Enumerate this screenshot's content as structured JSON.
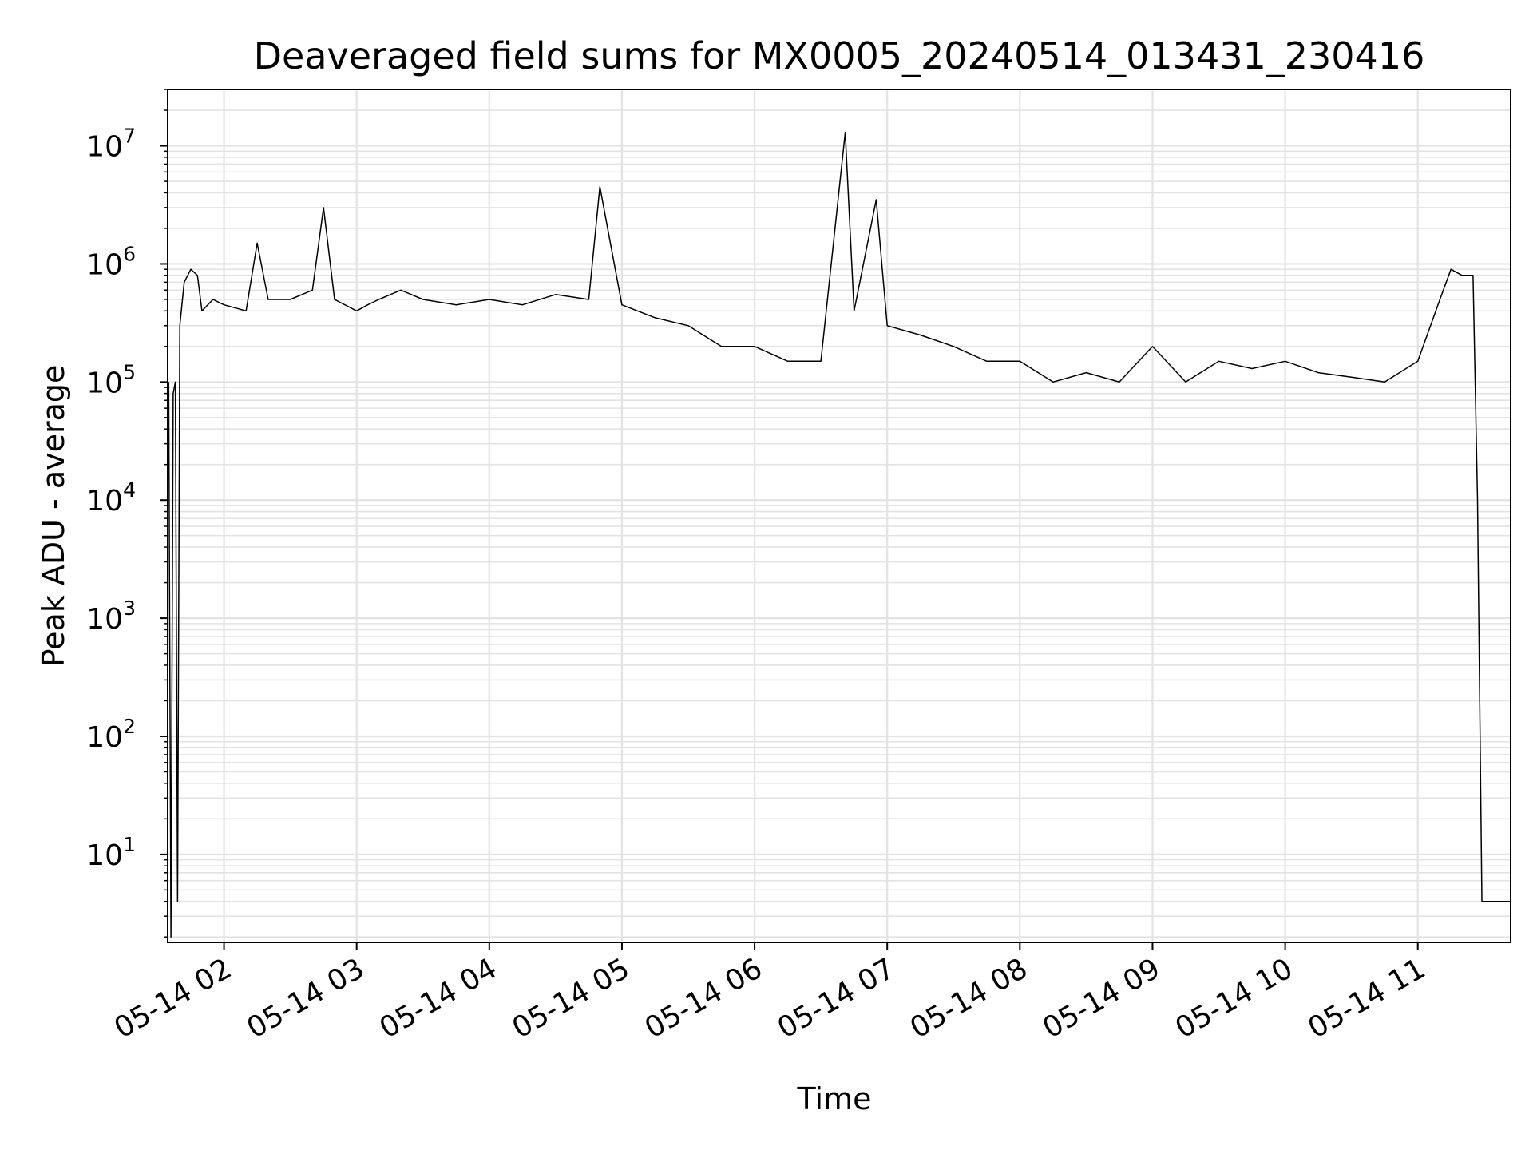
{
  "chart_data": {
    "type": "line",
    "title": "Deaveraged field sums for MX0005_20240514_013431_230416",
    "xlabel": "Time",
    "ylabel": "Peak ADU - average",
    "yscale": "log",
    "ylim": [
      1.8,
      30000000
    ],
    "xlim": [
      "2024-05-14T01:34:31",
      "2024-05-14T11:42:00"
    ],
    "grid": true,
    "x_ticks": [
      "05-14 02",
      "05-14 03",
      "05-14 04",
      "05-14 05",
      "05-14 06",
      "05-14 07",
      "05-14 08",
      "05-14 09",
      "05-14 10",
      "05-14 11"
    ],
    "y_ticks": [
      {
        "base": "10",
        "exp": "1",
        "value": 10
      },
      {
        "base": "10",
        "exp": "2",
        "value": 100
      },
      {
        "base": "10",
        "exp": "3",
        "value": 1000
      },
      {
        "base": "10",
        "exp": "4",
        "value": 10000
      },
      {
        "base": "10",
        "exp": "5",
        "value": 100000
      },
      {
        "base": "10",
        "exp": "6",
        "value": 1000000
      },
      {
        "base": "10",
        "exp": "7",
        "value": 10000000
      }
    ],
    "line_color": "#000000",
    "series": [
      {
        "x": [
          "2024-05-14T01:35:00",
          "2024-05-14T01:36:00",
          "2024-05-14T01:37:00",
          "2024-05-14T01:38:00",
          "2024-05-14T01:39:00",
          "2024-05-14T01:40:00",
          "2024-05-14T01:42:00",
          "2024-05-14T01:45:00",
          "2024-05-14T01:48:00",
          "2024-05-14T01:50:00",
          "2024-05-14T01:55:00",
          "2024-05-14T02:00:00",
          "2024-05-14T02:10:00",
          "2024-05-14T02:15:00",
          "2024-05-14T02:20:00",
          "2024-05-14T02:30:00",
          "2024-05-14T02:40:00",
          "2024-05-14T02:45:00",
          "2024-05-14T02:50:00",
          "2024-05-14T03:00:00",
          "2024-05-14T03:05:00",
          "2024-05-14T03:10:00",
          "2024-05-14T03:20:00",
          "2024-05-14T03:30:00",
          "2024-05-14T03:45:00",
          "2024-05-14T04:00:00",
          "2024-05-14T04:15:00",
          "2024-05-14T04:30:00",
          "2024-05-14T04:45:00",
          "2024-05-14T04:50:00",
          "2024-05-14T05:00:00",
          "2024-05-14T05:15:00",
          "2024-05-14T05:30:00",
          "2024-05-14T05:45:00",
          "2024-05-14T06:00:00",
          "2024-05-14T06:15:00",
          "2024-05-14T06:30:00",
          "2024-05-14T06:41:00",
          "2024-05-14T06:45:00",
          "2024-05-14T06:55:00",
          "2024-05-14T07:00:00",
          "2024-05-14T07:15:00",
          "2024-05-14T07:30:00",
          "2024-05-14T07:45:00",
          "2024-05-14T08:00:00",
          "2024-05-14T08:15:00",
          "2024-05-14T08:30:00",
          "2024-05-14T08:45:00",
          "2024-05-14T09:00:00",
          "2024-05-14T09:15:00",
          "2024-05-14T09:30:00",
          "2024-05-14T09:45:00",
          "2024-05-14T10:00:00",
          "2024-05-14T10:15:00",
          "2024-05-14T10:30:00",
          "2024-05-14T10:45:00",
          "2024-05-14T11:00:00",
          "2024-05-14T11:10:00",
          "2024-05-14T11:15:00",
          "2024-05-14T11:20:00",
          "2024-05-14T11:25:00",
          "2024-05-14T11:27:00",
          "2024-05-14T11:29:00",
          "2024-05-14T11:31:00",
          "2024-05-14T11:42:00"
        ],
        "y": [
          100000,
          2,
          80000,
          100000,
          4,
          300000,
          700000,
          900000,
          800000,
          400000,
          500000,
          450000,
          400000,
          1500000,
          500000,
          500000,
          600000,
          3000000,
          500000,
          400000,
          450000,
          500000,
          600000,
          500000,
          450000,
          500000,
          450000,
          550000,
          500000,
          4500000,
          450000,
          350000,
          300000,
          200000,
          200000,
          150000,
          150000,
          13000000,
          400000,
          3500000,
          300000,
          250000,
          200000,
          150000,
          150000,
          100000,
          120000,
          100000,
          200000,
          100000,
          150000,
          130000,
          150000,
          120000,
          110000,
          100000,
          150000,
          500000,
          900000,
          800000,
          800000,
          10000,
          4,
          4,
          4
        ]
      }
    ]
  }
}
